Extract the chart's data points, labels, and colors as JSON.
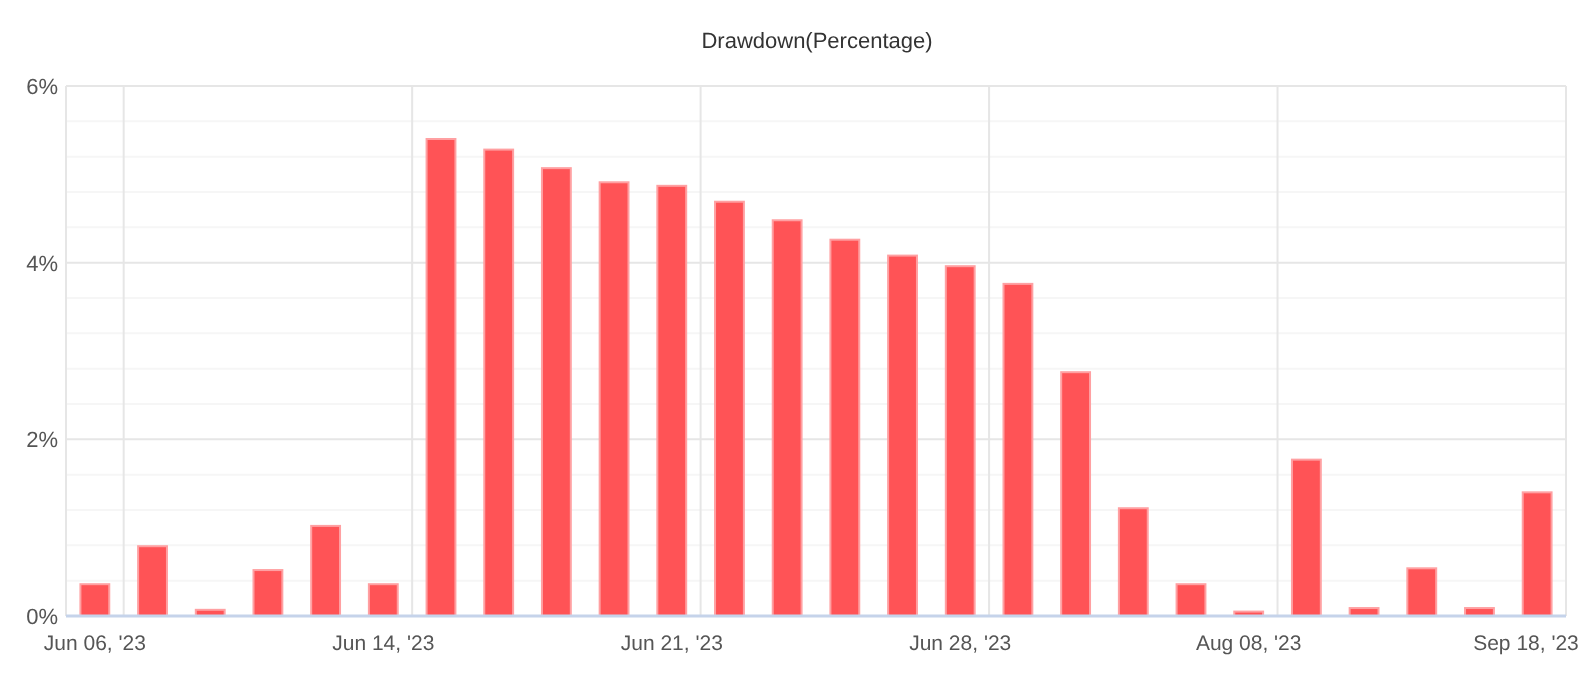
{
  "chart_data": {
    "type": "bar",
    "title": "Drawdown(Percentage)",
    "categories": [
      "Jun 06, '23",
      null,
      null,
      null,
      null,
      "Jun 14, '23",
      null,
      null,
      null,
      null,
      "Jun 21, '23",
      null,
      null,
      null,
      null,
      "Jun 28, '23",
      null,
      null,
      null,
      null,
      "Aug 08, '23",
      null,
      null,
      null,
      null,
      "Sep 18, '23"
    ],
    "values": [
      0.36,
      0.79,
      0.07,
      0.52,
      1.02,
      0.36,
      5.4,
      5.28,
      5.07,
      4.91,
      4.87,
      4.69,
      4.48,
      4.26,
      4.08,
      3.96,
      3.76,
      2.76,
      1.22,
      0.36,
      0.05,
      1.77,
      0.09,
      0.54,
      0.09,
      1.4
    ],
    "color": "#ff5053",
    "ylim": [
      0,
      6
    ],
    "yticks": [
      {
        "value": 0,
        "label": "0%"
      },
      {
        "value": 2,
        "label": "2%"
      },
      {
        "value": 4,
        "label": "4%"
      },
      {
        "value": 6,
        "label": "6%"
      }
    ],
    "grid": true
  }
}
